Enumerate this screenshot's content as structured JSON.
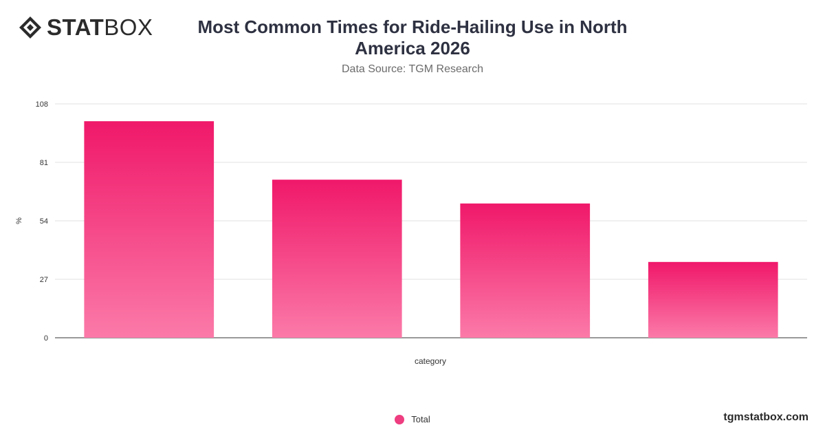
{
  "brand": {
    "logo_strong": "STAT",
    "logo_light": "BOX",
    "watermark": "tgmstatbox.com"
  },
  "colors": {
    "bar_top": "#f0186a",
    "bar_bottom": "#fb7aa8",
    "legend": "#ee3d80"
  },
  "chart_data": {
    "type": "bar",
    "title": "Most Common Times for Ride-Hailing Use in North America 2026",
    "subtitle": "Data Source: TGM Research",
    "xlabel": "category",
    "ylabel": "%",
    "categories": [
      "",
      "",
      "",
      ""
    ],
    "series": [
      {
        "name": "Total",
        "values": [
          100,
          73,
          62,
          35
        ]
      }
    ],
    "yticks": [
      0,
      27,
      54,
      81,
      108
    ],
    "ylim": [
      0,
      108
    ],
    "grid": true,
    "legend": "bottom-center"
  }
}
